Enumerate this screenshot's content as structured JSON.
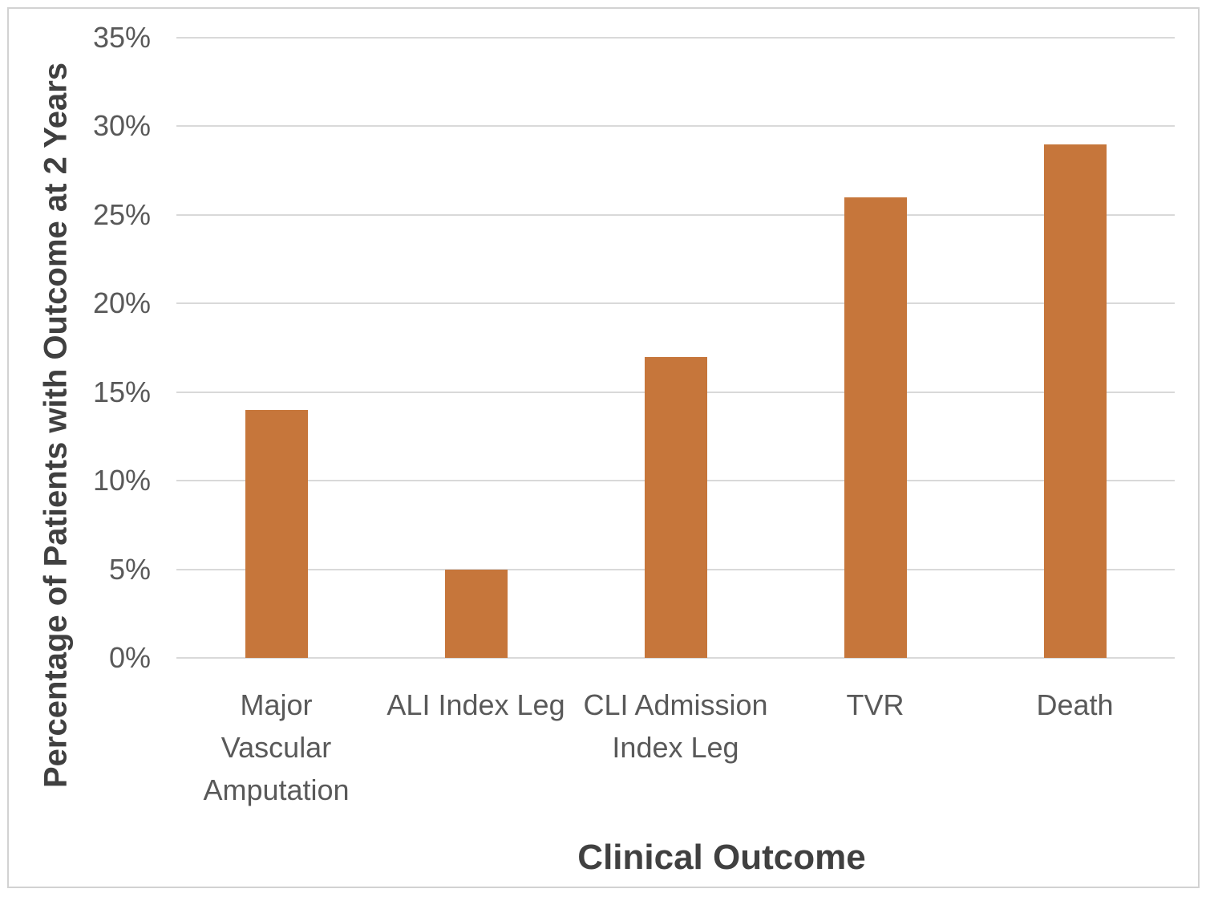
{
  "chart_data": {
    "type": "bar",
    "title": "",
    "xlabel": "Clinical Outcome",
    "ylabel": "Percentage of Patients with Outcome at 2 Years",
    "categories": [
      "Major Vascular Amputation",
      "ALI Index Leg",
      "CLI Admission Index Leg",
      "TVR",
      "Death"
    ],
    "category_label_lines": [
      [
        "Major",
        "Vascular",
        "Amputation"
      ],
      [
        "ALI Index Leg"
      ],
      [
        "CLI Admission",
        "Index Leg"
      ],
      [
        "TVR"
      ],
      [
        "Death"
      ]
    ],
    "values": [
      14,
      5,
      17,
      26,
      29
    ],
    "value_unit": "%",
    "ylim": [
      0,
      35
    ],
    "ytick_step": 5,
    "ytick_labels": [
      "0%",
      "5%",
      "10%",
      "15%",
      "20%",
      "25%",
      "30%",
      "35%"
    ],
    "grid": true,
    "legend": false,
    "colors": {
      "bar": "#C6763B",
      "gridline": "#D9D9D9",
      "tick_text": "#595959",
      "axis_title_text": "#404040",
      "chart_border": "#D2D2D2"
    }
  }
}
